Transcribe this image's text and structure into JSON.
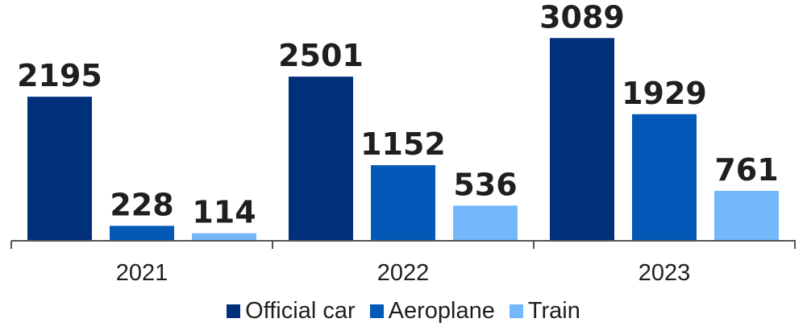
{
  "chart_data": {
    "type": "bar",
    "categories": [
      "2021",
      "2022",
      "2023"
    ],
    "series": [
      {
        "name": "Official car",
        "color": "#00307a",
        "values": [
          2195,
          2501,
          3089
        ]
      },
      {
        "name": "Aeroplane",
        "color": "#0359b8",
        "values": [
          228,
          1152,
          1929
        ]
      },
      {
        "name": "Train",
        "color": "#74b8fa",
        "values": [
          114,
          536,
          761
        ]
      }
    ],
    "ylim": [
      0,
      3200
    ],
    "grid": false,
    "legend_position": "bottom",
    "data_labels": true
  }
}
